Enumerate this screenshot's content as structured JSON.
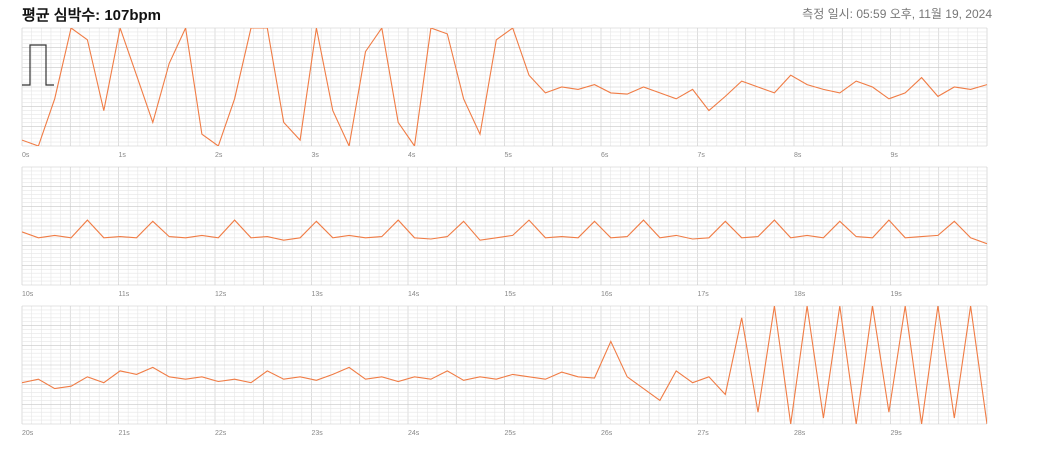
{
  "header": {
    "title": "평균 심박수: 107bpm",
    "timestamp": "측정 일시: 05:59 오후, 11월 19, 2024"
  },
  "strips": [
    {
      "ticks": [
        "0s",
        "1s",
        "2s",
        "3s",
        "4s",
        "5s",
        "6s",
        "7s",
        "8s",
        "9s"
      ],
      "values": [
        5,
        0,
        40,
        100,
        90,
        30,
        100,
        60,
        20,
        70,
        100,
        10,
        0,
        40,
        100,
        100,
        20,
        5,
        100,
        30,
        0,
        80,
        100,
        20,
        0,
        100,
        95,
        40,
        10,
        90,
        100,
        60,
        45,
        50,
        48,
        52,
        45,
        44,
        50,
        45,
        40,
        48,
        30,
        42,
        55,
        50,
        45,
        60,
        52,
        48,
        45,
        55,
        50,
        40,
        45,
        58,
        42,
        50,
        48,
        52
      ]
    },
    {
      "ticks": [
        "10s",
        "11s",
        "12s",
        "13s",
        "14s",
        "15s",
        "16s",
        "17s",
        "18s",
        "19s"
      ],
      "values": [
        45,
        40,
        42,
        40,
        55,
        40,
        41,
        40,
        54,
        41,
        40,
        42,
        40,
        55,
        40,
        41,
        38,
        40,
        54,
        40,
        42,
        40,
        41,
        55,
        40,
        39,
        41,
        54,
        38,
        40,
        42,
        55,
        40,
        41,
        40,
        54,
        40,
        41,
        55,
        40,
        42,
        39,
        40,
        54,
        40,
        41,
        55,
        40,
        42,
        40,
        54,
        41,
        40,
        55,
        40,
        41,
        42,
        54,
        40,
        35
      ]
    },
    {
      "ticks": [
        "20s",
        "21s",
        "22s",
        "23s",
        "24s",
        "25s",
        "26s",
        "27s",
        "28s",
        "29s"
      ],
      "values": [
        35,
        38,
        30,
        32,
        40,
        35,
        45,
        42,
        48,
        40,
        38,
        40,
        36,
        38,
        35,
        45,
        38,
        40,
        37,
        42,
        48,
        38,
        40,
        36,
        40,
        38,
        45,
        37,
        40,
        38,
        42,
        40,
        38,
        44,
        40,
        39,
        70,
        40,
        30,
        20,
        45,
        35,
        40,
        25,
        90,
        10,
        100,
        0,
        100,
        5,
        100,
        0,
        100,
        10,
        100,
        0,
        100,
        5,
        100,
        0
      ]
    }
  ]
}
